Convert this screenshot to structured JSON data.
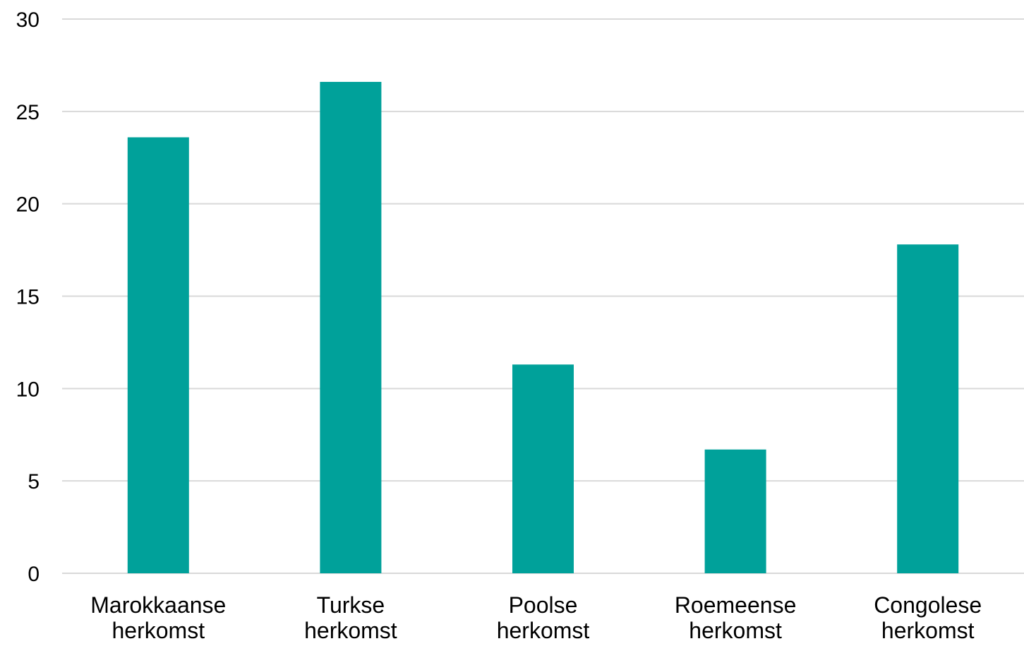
{
  "chart_data": {
    "type": "bar",
    "title": "",
    "xlabel": "",
    "ylabel": "",
    "categories": [
      [
        "Marokkaanse",
        "herkomst"
      ],
      [
        "Turkse",
        "herkomst"
      ],
      [
        "Poolse",
        "herkomst"
      ],
      [
        "Roemeense",
        "herkomst"
      ],
      [
        "Congolese",
        "herkomst"
      ]
    ],
    "values": [
      23.6,
      26.6,
      11.3,
      6.7,
      17.8
    ],
    "ylim": [
      0,
      30
    ],
    "yticks": [
      0,
      5,
      10,
      15,
      20,
      25,
      30
    ],
    "grid": true,
    "legend": "none",
    "bar_color": "#00a19a"
  }
}
